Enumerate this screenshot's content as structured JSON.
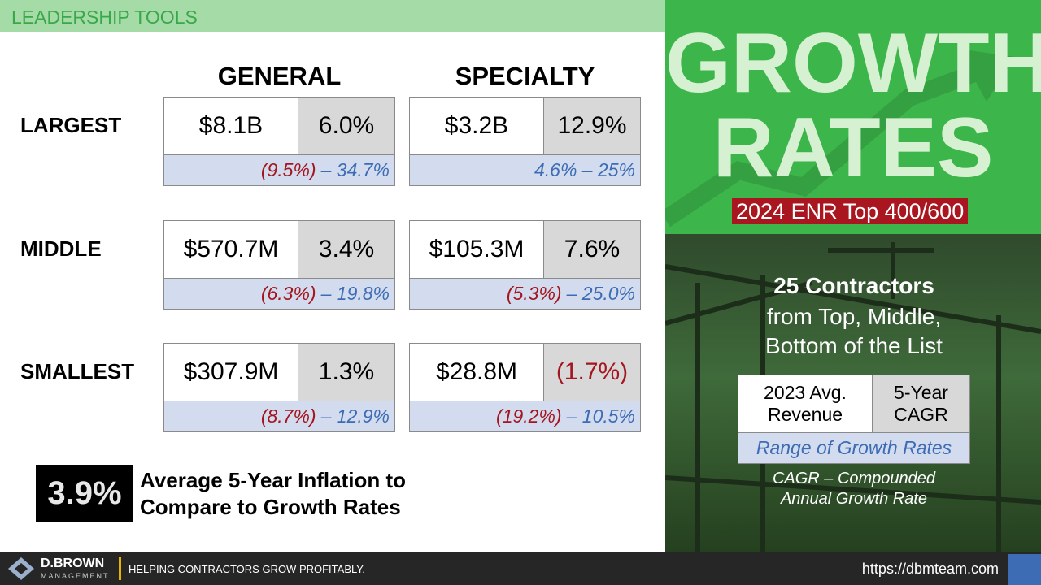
{
  "header": {
    "section": "LEADERSHIP TOOLS"
  },
  "title": {
    "line1": "GROWTH",
    "line2": "RATES",
    "subtitle": "2024 ENR Top 400/600"
  },
  "columns": [
    "GENERAL",
    "SPECIALTY"
  ],
  "rows": [
    {
      "label": "LARGEST",
      "cells": [
        {
          "revenue": "$8.1B",
          "rate": "6.0%",
          "range": [
            {
              "text": "(9.5%)",
              "color": "#a3161f"
            },
            {
              "text": "– 34.7%",
              "color": "#3d6cb5"
            }
          ]
        },
        {
          "revenue": "$3.2B",
          "rate": "12.9%",
          "range": [
            {
              "text": "4.6% – 25%",
              "color": "#3d6cb5"
            }
          ]
        }
      ]
    },
    {
      "label": "MIDDLE",
      "cells": [
        {
          "revenue": "$570.7M",
          "rate": "3.4%",
          "range": [
            {
              "text": "(6.3%)",
              "color": "#a3161f"
            },
            {
              "text": "– 19.8%",
              "color": "#3d6cb5"
            }
          ]
        },
        {
          "revenue": "$105.3M",
          "rate": "7.6%",
          "range": [
            {
              "text": "(5.3%)",
              "color": "#a3161f"
            },
            {
              "text": "– 25.0%",
              "color": "#3d6cb5"
            }
          ]
        }
      ]
    },
    {
      "label": "SMALLEST",
      "cells": [
        {
          "revenue": "$307.9M",
          "rate": "1.3%",
          "range": [
            {
              "text": "(8.7%)",
              "color": "#a3161f"
            },
            {
              "text": "– 12.9%",
              "color": "#3d6cb5"
            }
          ]
        },
        {
          "revenue": "$28.8M",
          "rate": "(1.7%)",
          "rate_color": "#a3161f",
          "range": [
            {
              "text": "(19.2%)",
              "color": "#a3161f"
            },
            {
              "text": "– 10.5%",
              "color": "#3d6cb5"
            }
          ]
        }
      ]
    }
  ],
  "inflation": {
    "value": "3.9%",
    "text": "Average 5-Year Inflation to Compare to Growth Rates"
  },
  "key": {
    "heading": "25 Contractors",
    "subheading": "from Top, Middle, Bottom of the List",
    "revenue": "2023 Avg. Revenue",
    "rate": "5-Year CAGR",
    "range": "Range of Growth Rates",
    "note": "CAGR – Compounded Annual Growth Rate"
  },
  "footer": {
    "brand": "D.BROWN",
    "brand_sub": "MANAGEMENT",
    "tagline": "HELPING CONTRACTORS GROW PROFITABLY.",
    "url": "https://dbmteam.com"
  }
}
